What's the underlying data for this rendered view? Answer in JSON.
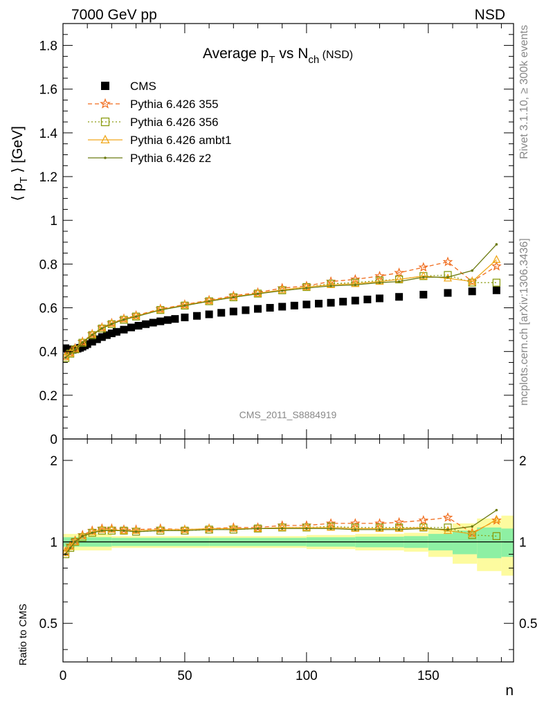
{
  "header": {
    "left": "7000 GeV pp",
    "right": "NSD"
  },
  "side_labels": {
    "right_top": "Rivet 3.1.10, ≥ 300k events",
    "right_bottom": "mcplots.cern.ch [arXiv:1306.3436]"
  },
  "chart_data": [
    {
      "type": "scatter",
      "panel": "main",
      "title": "Average p_T vs N_ch (NSD)",
      "title_parts": {
        "a": "Average p",
        "a_sub": "T",
        "b": " vs N",
        "b_sub": "ch",
        "c": " (NSD)"
      },
      "ylabel": "⟨ p_T ⟩ [GeV]",
      "ylabel_parts": {
        "a": "⟨ p",
        "sub": "T",
        "b": " ⟩ [GeV]"
      },
      "watermark": "CMS_2011_S8884919",
      "xlim": [
        0,
        185
      ],
      "ylim": [
        0,
        1.9
      ],
      "yticks": [
        0,
        0.2,
        0.4,
        0.6,
        0.8,
        1,
        1.2,
        1.4,
        1.6,
        1.8
      ],
      "ytick_labels": [
        "0",
        "0.2",
        "0.4",
        "0.6",
        "0.8",
        "1",
        "1.2",
        "1.4",
        "1.6",
        "1.8"
      ],
      "legend_position": "top-left",
      "series": [
        {
          "name": "CMS",
          "color": "#000000",
          "marker": "square-filled",
          "line": "none",
          "x": [
            1,
            2,
            3,
            4,
            5,
            6,
            7,
            8,
            9,
            10,
            12,
            14,
            16,
            18,
            20,
            22,
            25,
            28,
            31,
            34,
            37,
            40,
            43,
            46,
            50,
            55,
            60,
            65,
            70,
            75,
            80,
            85,
            90,
            95,
            100,
            105,
            110,
            115,
            120,
            125,
            130,
            138,
            148,
            158,
            168,
            178
          ],
          "y": [
            0.415,
            0.41,
            0.408,
            0.408,
            0.41,
            0.413,
            0.417,
            0.422,
            0.428,
            0.434,
            0.445,
            0.456,
            0.466,
            0.475,
            0.483,
            0.49,
            0.5,
            0.51,
            0.518,
            0.525,
            0.532,
            0.538,
            0.544,
            0.549,
            0.556,
            0.563,
            0.57,
            0.577,
            0.583,
            0.589,
            0.595,
            0.6,
            0.605,
            0.61,
            0.615,
            0.619,
            0.623,
            0.628,
            0.633,
            0.638,
            0.643,
            0.65,
            0.66,
            0.668,
            0.675,
            0.68
          ]
        },
        {
          "name": "Pythia 6.426 355",
          "color": "#f06b1c",
          "marker": "star-open",
          "line": "dashed",
          "x": [
            1,
            3,
            5,
            8,
            12,
            16,
            20,
            25,
            30,
            40,
            50,
            60,
            70,
            80,
            90,
            100,
            110,
            120,
            130,
            138,
            148,
            158,
            168,
            178
          ],
          "y": [
            0.38,
            0.395,
            0.415,
            0.445,
            0.48,
            0.51,
            0.53,
            0.55,
            0.565,
            0.595,
            0.615,
            0.635,
            0.655,
            0.67,
            0.69,
            0.7,
            0.72,
            0.73,
            0.745,
            0.76,
            0.785,
            0.81,
            0.72,
            0.79
          ]
        },
        {
          "name": "Pythia 6.426 356",
          "color": "#8a9b0f",
          "marker": "square-open",
          "line": "dotted",
          "x": [
            1,
            3,
            5,
            8,
            12,
            16,
            20,
            25,
            30,
            40,
            50,
            60,
            70,
            80,
            90,
            100,
            110,
            120,
            130,
            138,
            148,
            158,
            168,
            178
          ],
          "y": [
            0.37,
            0.39,
            0.41,
            0.44,
            0.475,
            0.505,
            0.525,
            0.545,
            0.56,
            0.59,
            0.61,
            0.63,
            0.648,
            0.665,
            0.68,
            0.695,
            0.71,
            0.715,
            0.725,
            0.73,
            0.745,
            0.75,
            0.715,
            0.715
          ]
        },
        {
          "name": "Pythia 6.426 ambt1",
          "color": "#f0a81c",
          "marker": "triangle-open",
          "line": "solid",
          "x": [
            1,
            3,
            5,
            8,
            12,
            16,
            20,
            25,
            30,
            40,
            50,
            60,
            70,
            80,
            90,
            100,
            110,
            120,
            130,
            138,
            148,
            158,
            168,
            178
          ],
          "y": [
            0.375,
            0.392,
            0.412,
            0.443,
            0.478,
            0.508,
            0.528,
            0.548,
            0.562,
            0.592,
            0.612,
            0.632,
            0.65,
            0.666,
            0.682,
            0.695,
            0.705,
            0.71,
            0.72,
            0.73,
            0.745,
            0.735,
            0.72,
            0.82
          ]
        },
        {
          "name": "Pythia 6.426 z2",
          "color": "#6b7a10",
          "marker": "dot",
          "line": "solid",
          "x": [
            1,
            3,
            5,
            8,
            12,
            16,
            20,
            25,
            30,
            40,
            50,
            60,
            70,
            80,
            90,
            100,
            110,
            120,
            130,
            138,
            148,
            158,
            168,
            178
          ],
          "y": [
            0.372,
            0.39,
            0.41,
            0.442,
            0.476,
            0.506,
            0.526,
            0.546,
            0.56,
            0.59,
            0.61,
            0.63,
            0.648,
            0.664,
            0.678,
            0.69,
            0.7,
            0.705,
            0.715,
            0.72,
            0.74,
            0.74,
            0.77,
            0.89
          ]
        }
      ]
    },
    {
      "type": "scatter",
      "panel": "ratio",
      "ylabel": "Ratio to CMS",
      "xlabel": "n",
      "xlim": [
        0,
        185
      ],
      "ylim": [
        0.36,
        2.4
      ],
      "log_y": true,
      "xticks": [
        0,
        50,
        100,
        150
      ],
      "xtick_labels": [
        "0",
        "50",
        "100",
        "150"
      ],
      "yticks": [
        0.5,
        1,
        2
      ],
      "ytick_labels": [
        "0.5",
        "1",
        "2"
      ],
      "reference_line": 1,
      "band_edges": [
        0,
        20,
        60,
        100,
        120,
        140,
        150,
        160,
        170,
        180,
        185
      ],
      "band_inner": [
        0.04,
        0.035,
        0.035,
        0.04,
        0.045,
        0.05,
        0.07,
        0.1,
        0.13,
        0.12
      ],
      "band_outer": [
        0.07,
        0.05,
        0.05,
        0.06,
        0.07,
        0.08,
        0.12,
        0.17,
        0.22,
        0.25
      ],
      "band_colors": {
        "inner": "#8ef0a3",
        "outer": "#fdfb9f"
      },
      "series": [
        {
          "name": "Pythia 6.426 355",
          "color": "#f06b1c",
          "marker": "star-open",
          "line": "dashed",
          "x": [
            1,
            3,
            5,
            8,
            12,
            16,
            20,
            25,
            30,
            40,
            50,
            60,
            70,
            80,
            90,
            100,
            110,
            120,
            130,
            138,
            148,
            158,
            168,
            178
          ],
          "y": [
            0.92,
            0.97,
            1.01,
            1.06,
            1.1,
            1.12,
            1.12,
            1.11,
            1.11,
            1.12,
            1.11,
            1.12,
            1.13,
            1.13,
            1.15,
            1.15,
            1.17,
            1.17,
            1.17,
            1.18,
            1.2,
            1.23,
            1.08,
            1.2
          ]
        },
        {
          "name": "Pythia 6.426 356",
          "color": "#8a9b0f",
          "marker": "square-open",
          "line": "dotted",
          "x": [
            1,
            3,
            5,
            8,
            12,
            16,
            20,
            25,
            30,
            40,
            50,
            60,
            70,
            80,
            90,
            100,
            110,
            120,
            130,
            138,
            148,
            158,
            168,
            178
          ],
          "y": [
            0.9,
            0.95,
            1.0,
            1.04,
            1.08,
            1.1,
            1.1,
            1.1,
            1.09,
            1.1,
            1.1,
            1.11,
            1.11,
            1.12,
            1.13,
            1.13,
            1.14,
            1.13,
            1.13,
            1.13,
            1.13,
            1.13,
            1.06,
            1.05
          ]
        },
        {
          "name": "Pythia 6.426 ambt1",
          "color": "#f0a81c",
          "marker": "triangle-open",
          "line": "solid",
          "x": [
            1,
            3,
            5,
            8,
            12,
            16,
            20,
            25,
            30,
            40,
            50,
            60,
            70,
            80,
            90,
            100,
            110,
            120,
            130,
            138,
            148,
            158,
            168,
            178
          ],
          "y": [
            0.91,
            0.96,
            1.0,
            1.05,
            1.09,
            1.11,
            1.11,
            1.1,
            1.1,
            1.11,
            1.11,
            1.12,
            1.12,
            1.12,
            1.13,
            1.13,
            1.13,
            1.12,
            1.12,
            1.12,
            1.13,
            1.1,
            1.07,
            1.21
          ]
        },
        {
          "name": "Pythia 6.426 z2",
          "color": "#6b7a10",
          "marker": "dot",
          "line": "solid",
          "x": [
            1,
            3,
            5,
            8,
            12,
            16,
            20,
            25,
            30,
            40,
            50,
            60,
            70,
            80,
            90,
            100,
            110,
            120,
            130,
            138,
            148,
            158,
            168,
            178
          ],
          "y": [
            0.9,
            0.95,
            1.0,
            1.05,
            1.08,
            1.1,
            1.1,
            1.1,
            1.09,
            1.1,
            1.1,
            1.11,
            1.11,
            1.12,
            1.12,
            1.12,
            1.12,
            1.11,
            1.11,
            1.11,
            1.12,
            1.11,
            1.14,
            1.31
          ]
        }
      ]
    }
  ]
}
